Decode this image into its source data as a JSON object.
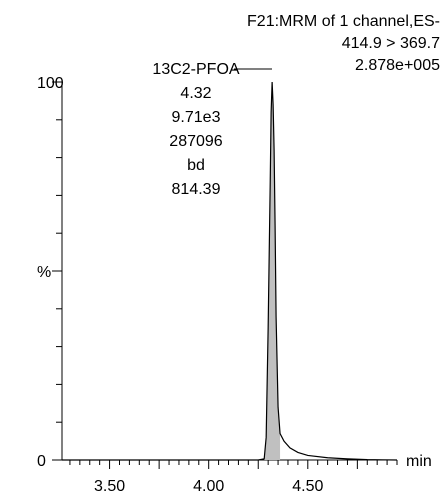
{
  "header": {
    "line1": "F21:MRM of 1 channel,ES-",
    "line2": "414.9 > 369.7",
    "line3": "2.878e+005"
  },
  "peak_label": {
    "name": "13C2-PFOA",
    "rt": "4.32",
    "height": "9.71e3",
    "area": "287096",
    "flag": "bd",
    "value": "814.39"
  },
  "axis": {
    "y_top": "100",
    "y_mid": "%",
    "y_bottom": "0",
    "x_unit": "min"
  },
  "colors": {
    "fill": "#c0c0c0",
    "line": "#000000"
  },
  "chart_data": {
    "type": "line",
    "title": "",
    "xlabel": "min",
    "ylabel": "%",
    "xlim": [
      3.26,
      4.95
    ],
    "ylim": [
      0,
      100
    ],
    "x_ticks": [
      3.5,
      4.0,
      4.5
    ],
    "x_tick_labels": [
      "3.50",
      "4.00",
      "4.50"
    ],
    "y_ticks": [
      0,
      100
    ],
    "y_tick_labels": [
      "0",
      "100"
    ],
    "series": [
      {
        "x": [
          3.26,
          3.5,
          4.0,
          4.25,
          4.28,
          4.29,
          4.3,
          4.31,
          4.315,
          4.32,
          4.325,
          4.33,
          4.335,
          4.34,
          4.35,
          4.36,
          4.38,
          4.41,
          4.45,
          4.5,
          4.6,
          4.7,
          4.8,
          4.95
        ],
        "y": [
          0,
          0,
          0,
          0,
          0.3,
          6,
          35,
          72,
          92,
          100,
          94,
          82,
          62,
          38,
          14,
          7,
          5,
          3.2,
          2.0,
          1.2,
          0.6,
          0.3,
          0.1,
          0
        ]
      }
    ],
    "peak_fill_range": [
      4.28,
      4.36
    ],
    "grid": false,
    "legend": "none"
  }
}
